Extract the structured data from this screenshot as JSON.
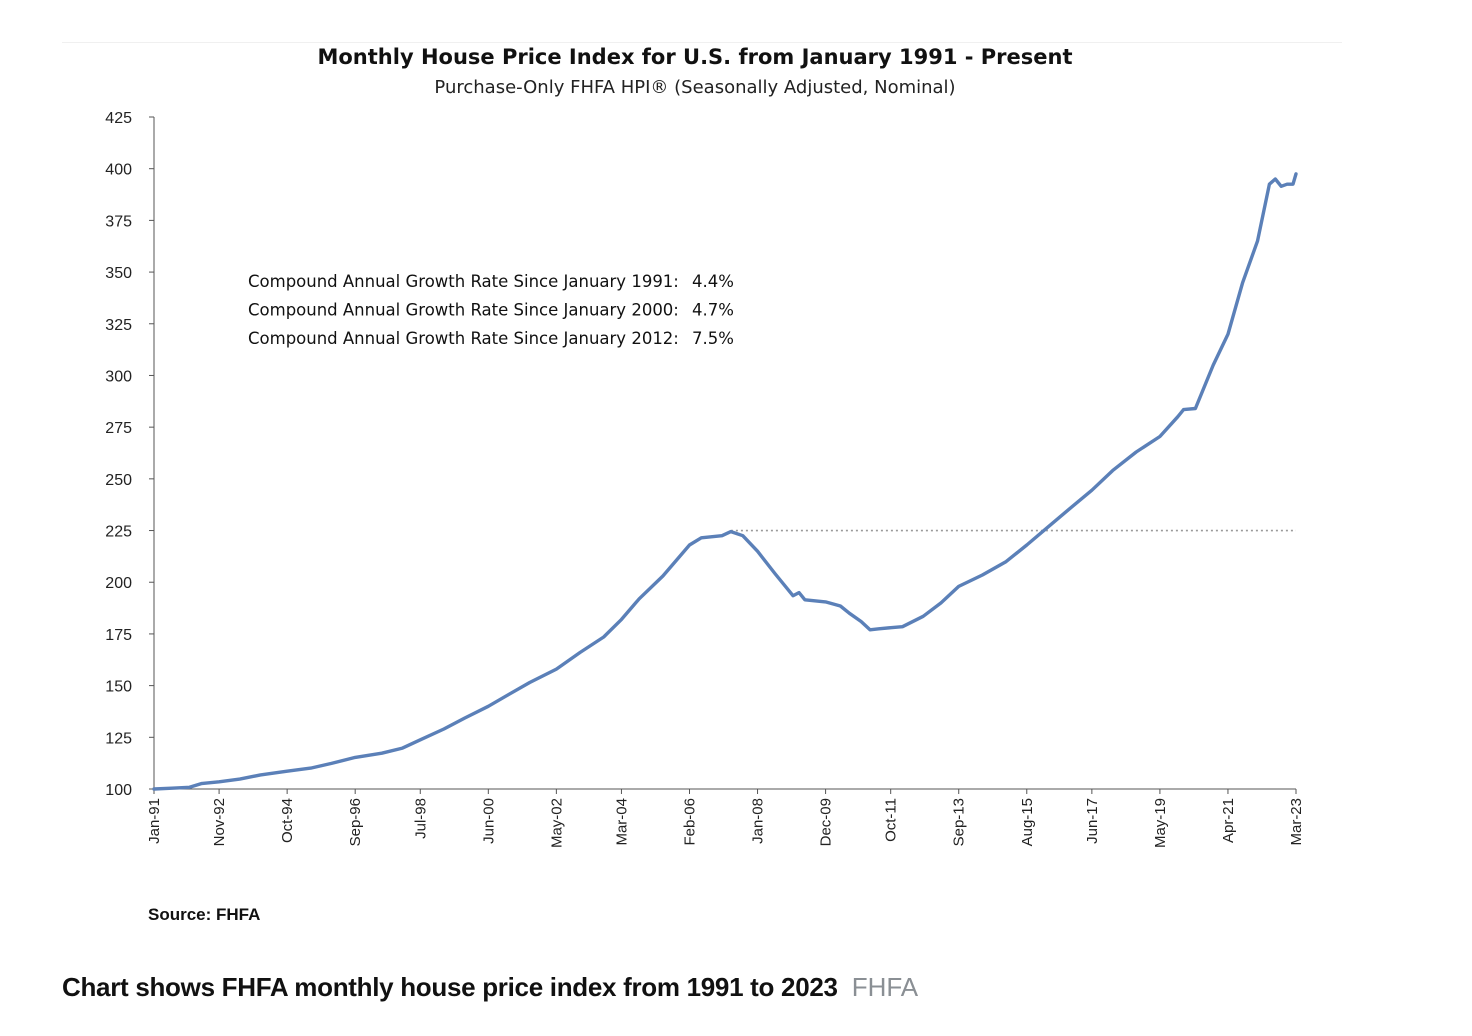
{
  "chart_data": {
    "type": "line",
    "title": "Monthly House Price Index for U.S. from January 1991 - Present",
    "subtitle": "Purchase-Only FHFA HPI® (Seasonally Adjusted, Nominal)",
    "ylim": [
      100,
      425
    ],
    "yticks": [
      100,
      125,
      150,
      175,
      200,
      225,
      250,
      275,
      300,
      325,
      350,
      375,
      400,
      425
    ],
    "xticks": [
      "Jan-91",
      "Nov-92",
      "Oct-94",
      "Sep-96",
      "Jul-98",
      "Jun-00",
      "May-02",
      "Mar-04",
      "Feb-06",
      "Jan-08",
      "Dec-09",
      "Oct-11",
      "Sep-13",
      "Aug-15",
      "Jun-17",
      "May-19",
      "Apr-21",
      "Mar-23"
    ],
    "xlim": [
      "1991-01",
      "2023-03"
    ],
    "series": [
      {
        "color": "#5b80b8",
        "points": [
          [
            "1991-01",
            100.0
          ],
          [
            "1991-07",
            100.4
          ],
          [
            "1992-01",
            100.8
          ],
          [
            "1992-05",
            102.6
          ],
          [
            "1992-11",
            103.5
          ],
          [
            "1993-06",
            104.8
          ],
          [
            "1994-01",
            106.8
          ],
          [
            "1994-10",
            108.6
          ],
          [
            "1995-06",
            110.1
          ],
          [
            "1996-01",
            112.4
          ],
          [
            "1996-09",
            115.3
          ],
          [
            "1997-06",
            117.3
          ],
          [
            "1998-01",
            119.8
          ],
          [
            "1998-07",
            123.8
          ],
          [
            "1999-03",
            129.0
          ],
          [
            "1999-10",
            134.3
          ],
          [
            "2000-06",
            140.0
          ],
          [
            "2001-01",
            145.8
          ],
          [
            "2001-08",
            151.5
          ],
          [
            "2002-05",
            158.0
          ],
          [
            "2003-01",
            166.0
          ],
          [
            "2003-09",
            173.5
          ],
          [
            "2004-03",
            182.0
          ],
          [
            "2004-09",
            192.0
          ],
          [
            "2005-05",
            203.0
          ],
          [
            "2005-11",
            213.0
          ],
          [
            "2006-02",
            218.0
          ],
          [
            "2006-06",
            221.5
          ],
          [
            "2007-01",
            222.5
          ],
          [
            "2007-04",
            224.5
          ],
          [
            "2007-08",
            222.5
          ],
          [
            "2008-01",
            215.0
          ],
          [
            "2008-07",
            204.0
          ],
          [
            "2009-01",
            193.5
          ],
          [
            "2009-03",
            195.0
          ],
          [
            "2009-05",
            191.5
          ],
          [
            "2009-12",
            190.5
          ],
          [
            "2010-05",
            188.5
          ],
          [
            "2010-08",
            185.0
          ],
          [
            "2010-12",
            181.0
          ],
          [
            "2011-03",
            177.0
          ],
          [
            "2011-06",
            177.5
          ],
          [
            "2011-10",
            178.0
          ],
          [
            "2012-02",
            178.5
          ],
          [
            "2012-09",
            183.5
          ],
          [
            "2013-03",
            190.0
          ],
          [
            "2013-09",
            198.0
          ],
          [
            "2014-05",
            203.5
          ],
          [
            "2015-01",
            210.0
          ],
          [
            "2015-08",
            218.0
          ],
          [
            "2016-03",
            226.5
          ],
          [
            "2016-10",
            235.0
          ],
          [
            "2017-06",
            244.5
          ],
          [
            "2018-01",
            254.0
          ],
          [
            "2018-09",
            263.0
          ],
          [
            "2019-05",
            270.5
          ],
          [
            "2019-11",
            280.0
          ],
          [
            "2020-01",
            283.5
          ],
          [
            "2020-05",
            284.0
          ],
          [
            "2020-11",
            305.0
          ],
          [
            "2021-04",
            320.0
          ],
          [
            "2021-09",
            345.0
          ],
          [
            "2022-02",
            365.0
          ],
          [
            "2022-06",
            392.5
          ],
          [
            "2022-08",
            395.0
          ],
          [
            "2022-10",
            391.5
          ],
          [
            "2022-12",
            392.5
          ],
          [
            "2023-02",
            392.5
          ],
          [
            "2023-03",
            397.5
          ]
        ]
      }
    ],
    "reference_line": {
      "value": 225,
      "from": "2007-04",
      "to": "2023-03",
      "style": "dotted"
    },
    "annotations": [
      {
        "label": "Compound Annual Growth Rate Since January 1991:",
        "value": "4.4%"
      },
      {
        "label": "Compound Annual Growth Rate Since January 2000:",
        "value": "4.7%"
      },
      {
        "label": "Compound Annual Growth Rate Since January 2012:",
        "value": "7.5%"
      }
    ],
    "source": "Source: FHFA"
  },
  "caption": {
    "text": "Chart shows FHFA monthly house price index from 1991 to 2023",
    "credit": "FHFA"
  }
}
